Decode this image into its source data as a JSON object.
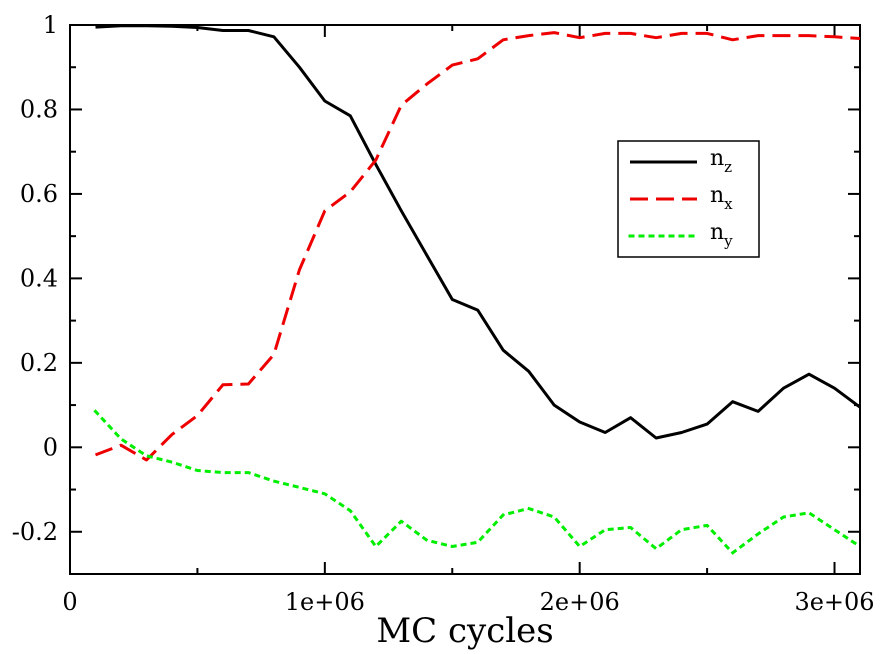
{
  "chart_data": {
    "type": "line",
    "title": "",
    "xlabel": "MC cycles",
    "ylabel": "",
    "xlim": [
      0,
      3100000
    ],
    "ylim": [
      -0.3,
      1
    ],
    "x_ticks": [
      {
        "value": 0,
        "label": "0"
      },
      {
        "value": 1000000,
        "label": "1e+06"
      },
      {
        "value": 2000000,
        "label": "2e+06"
      },
      {
        "value": 3000000,
        "label": "3e+06"
      }
    ],
    "y_ticks": [
      {
        "value": -0.2,
        "label": "-0.2"
      },
      {
        "value": 0,
        "label": "0"
      },
      {
        "value": 0.2,
        "label": "0.2"
      },
      {
        "value": 0.4,
        "label": "0.4"
      },
      {
        "value": 0.6,
        "label": "0.6"
      },
      {
        "value": 0.8,
        "label": "0.8"
      },
      {
        "value": 1,
        "label": "1"
      }
    ],
    "grid": false,
    "legend_position": "center-right",
    "x": [
      100000,
      200000,
      300000,
      400000,
      500000,
      600000,
      700000,
      800000,
      900000,
      1000000,
      1100000,
      1200000,
      1300000,
      1400000,
      1500000,
      1600000,
      1700000,
      1800000,
      1900000,
      2000000,
      2100000,
      2200000,
      2300000,
      2400000,
      2500000,
      2600000,
      2700000,
      2800000,
      2900000,
      3000000,
      3100000
    ],
    "series": [
      {
        "name": "n",
        "sub": "z",
        "color": "#000000",
        "dash": "solid",
        "values": [
          0.995,
          0.998,
          0.998,
          0.997,
          0.994,
          0.987,
          0.987,
          0.972,
          0.9,
          0.82,
          0.785,
          0.67,
          0.56,
          0.455,
          0.35,
          0.325,
          0.23,
          0.18,
          0.1,
          0.06,
          0.035,
          0.07,
          0.022,
          0.035,
          0.055,
          0.108,
          0.085,
          0.14,
          0.173,
          0.14,
          0.095
        ]
      },
      {
        "name": "n",
        "sub": "x",
        "color": "#ee0000",
        "dash": "dashed",
        "values": [
          -0.018,
          0.005,
          -0.03,
          0.03,
          0.075,
          0.148,
          0.15,
          0.22,
          0.42,
          0.56,
          0.605,
          0.68,
          0.81,
          0.86,
          0.905,
          0.92,
          0.965,
          0.975,
          0.982,
          0.97,
          0.98,
          0.98,
          0.97,
          0.98,
          0.98,
          0.965,
          0.975,
          0.975,
          0.975,
          0.972,
          0.968
        ]
      },
      {
        "name": "n",
        "sub": "y",
        "color": "#00ee00",
        "dash": "dotted",
        "values": [
          0.085,
          0.02,
          -0.02,
          -0.035,
          -0.055,
          -0.06,
          -0.06,
          -0.08,
          -0.095,
          -0.11,
          -0.15,
          -0.235,
          -0.175,
          -0.22,
          -0.235,
          -0.225,
          -0.16,
          -0.145,
          -0.165,
          -0.235,
          -0.195,
          -0.19,
          -0.24,
          -0.195,
          -0.185,
          -0.25,
          -0.205,
          -0.165,
          -0.155,
          -0.195,
          -0.235
        ]
      }
    ]
  }
}
